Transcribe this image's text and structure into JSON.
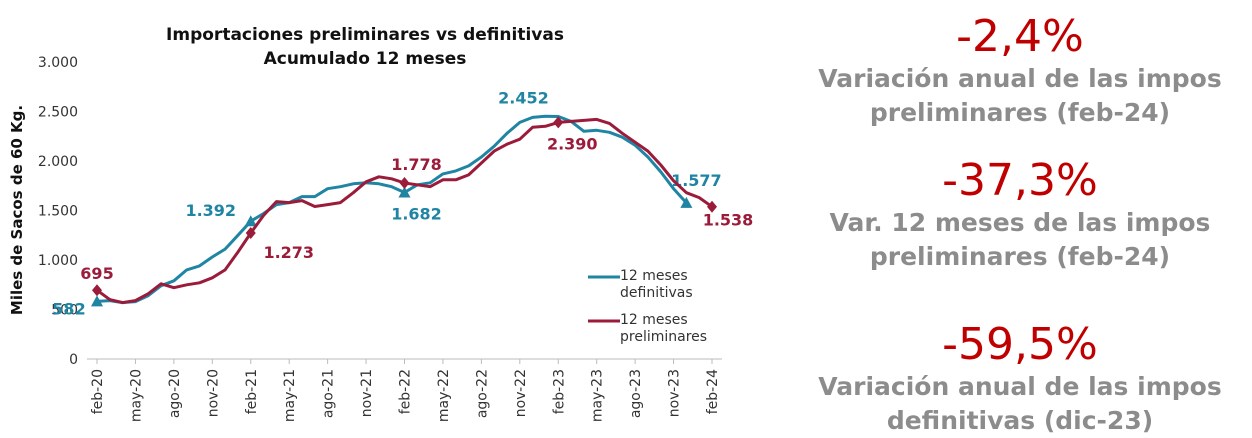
{
  "chart_data": {
    "type": "line",
    "title": "Importaciones preliminares vs definitivas",
    "subtitle": "Acumulado 12 meses",
    "y_label": "Miles de Sacos de 60 Kg.",
    "categories": [
      "feb-20",
      null,
      null,
      "may-20",
      null,
      null,
      "ago-20",
      null,
      null,
      "nov-20",
      null,
      null,
      "feb-21",
      null,
      null,
      "may-21",
      null,
      null,
      "ago-21",
      null,
      null,
      "nov-21",
      null,
      null,
      "feb-22",
      null,
      null,
      "may-22",
      null,
      null,
      "ago-22",
      null,
      null,
      "nov-22",
      null,
      null,
      "feb-23",
      null,
      null,
      "may-23",
      null,
      null,
      "ago-23",
      null,
      null,
      "nov-23",
      null,
      null,
      "feb-24"
    ],
    "ylim": [
      0,
      3000
    ],
    "yticks": [
      0,
      500,
      {
        "value": 1000,
        "label": "1.000"
      },
      {
        "value": 1500,
        "label": "1.500"
      },
      {
        "value": 2000,
        "label": "2.000"
      },
      {
        "value": 2500,
        "label": "2.500"
      },
      {
        "value": 3000,
        "label": "3.000"
      }
    ],
    "series": [
      {
        "name": "12 meses definitivas",
        "color": "#1f85a3",
        "values": [
          582,
          590,
          570,
          580,
          640,
          740,
          790,
          900,
          940,
          1030,
          1110,
          1250,
          1392,
          1470,
          1560,
          1580,
          1640,
          1640,
          1720,
          1740,
          1770,
          1780,
          1770,
          1740,
          1682,
          1760,
          1780,
          1870,
          1900,
          1950,
          2040,
          2150,
          2280,
          2390,
          2440,
          2452,
          2450,
          2400,
          2300,
          2310,
          2290,
          2240,
          2160,
          2040,
          1890,
          1720,
          1577,
          null,
          null
        ],
        "value_labels": [
          "582",
          null,
          null,
          null,
          null,
          null,
          null,
          null,
          null,
          null,
          null,
          null,
          "1.392",
          null,
          null,
          null,
          null,
          null,
          null,
          null,
          null,
          null,
          null,
          null,
          "1.682",
          null,
          null,
          null,
          null,
          null,
          null,
          null,
          null,
          null,
          null,
          "2.452",
          null,
          null,
          null,
          null,
          null,
          null,
          null,
          null,
          null,
          null,
          "1.577",
          null,
          null
        ]
      },
      {
        "name": "12 meses preliminares",
        "color": "#9b1b3a",
        "values": [
          695,
          600,
          570,
          590,
          660,
          760,
          720,
          750,
          770,
          820,
          900,
          1080,
          1273,
          1450,
          1590,
          1580,
          1600,
          1540,
          1560,
          1580,
          1680,
          1790,
          1840,
          1820,
          1778,
          1760,
          1740,
          1810,
          1810,
          1860,
          1980,
          2100,
          2170,
          2220,
          2340,
          2350,
          2390,
          2400,
          2410,
          2420,
          2380,
          2280,
          2190,
          2100,
          1960,
          1800,
          1680,
          1630,
          1538
        ],
        "value_labels": [
          "695",
          null,
          null,
          null,
          null,
          null,
          null,
          null,
          null,
          null,
          null,
          null,
          "1.273",
          null,
          null,
          null,
          null,
          null,
          null,
          null,
          null,
          null,
          null,
          null,
          "1.778",
          null,
          null,
          null,
          null,
          null,
          null,
          null,
          null,
          null,
          null,
          null,
          "2.390",
          null,
          null,
          null,
          null,
          null,
          null,
          null,
          null,
          null,
          null,
          null,
          "1.538"
        ]
      }
    ]
  },
  "kpis": [
    {
      "value": "-2,4%",
      "label": "Variación anual de las impos preliminares (feb-24)"
    },
    {
      "value": "-37,3%",
      "label": "Var. 12 meses de las impos preliminares (feb-24)"
    },
    {
      "value": "-59,5%",
      "label": "Variación anual de las impos definitivas (dic-23)"
    }
  ]
}
